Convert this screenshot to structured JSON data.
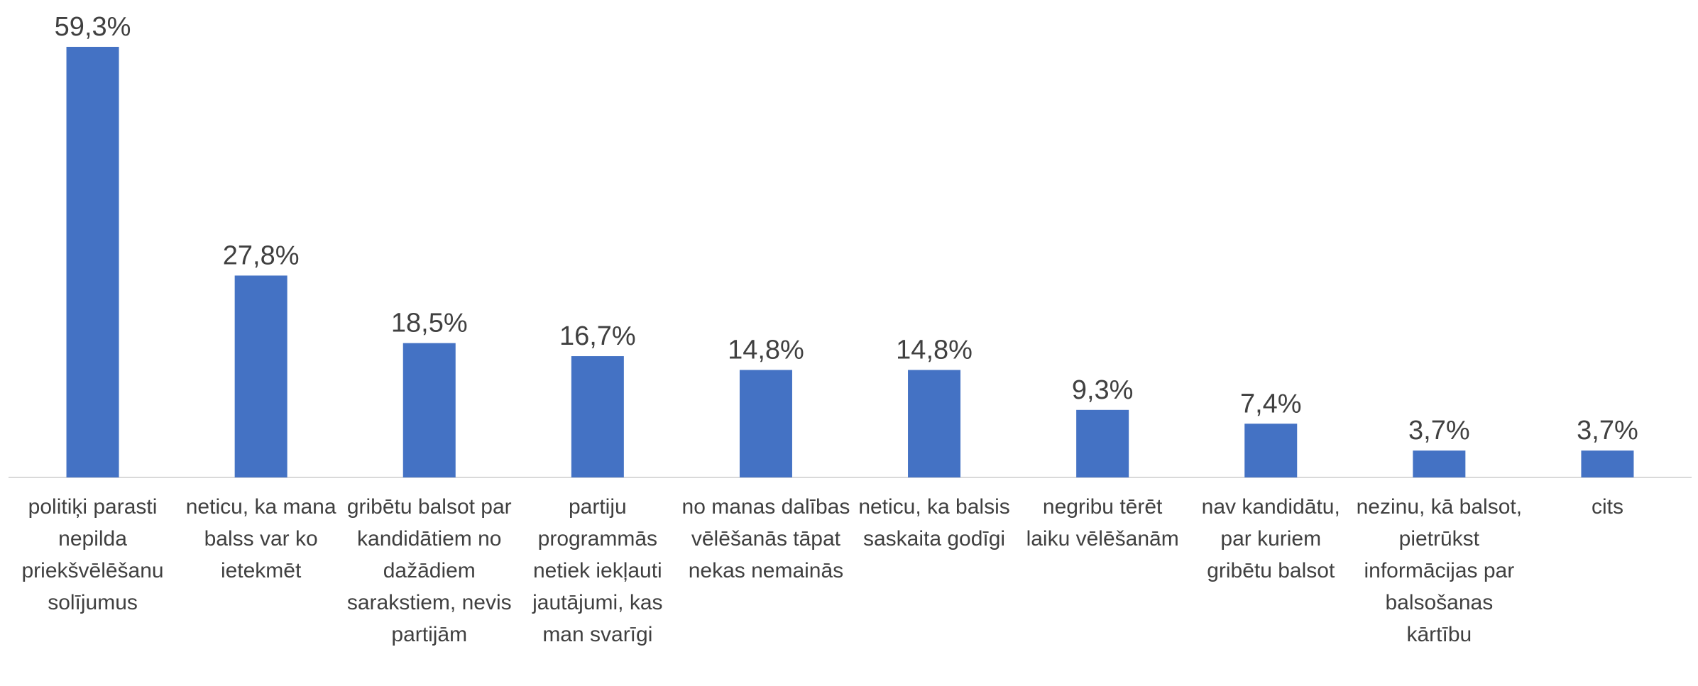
{
  "chart_data": {
    "type": "bar",
    "categories": [
      "politiķi parasti nepilda priekšvēlēšanu solījumus",
      "neticu, ka mana balss var ko ietekmēt",
      "gribētu balsot par kandidātiem no dažādiem sarakstiem, nevis partijām",
      "partiju programmās netiek iekļauti jautājumi, kas man svarīgi",
      "no manas dalības vēlēšanās tāpat nekas nemainās",
      "neticu, ka balsis saskaita godīgi",
      "negribu tērēt laiku vēlēšanām",
      "nav kandidātu, par kuriem gribētu balsot",
      "nezinu, kā balsot, pietrūkst informācijas par balsošanas kārtību",
      "cits"
    ],
    "values": [
      59.3,
      27.8,
      18.5,
      16.7,
      14.8,
      14.8,
      9.3,
      7.4,
      3.7,
      3.7
    ],
    "value_labels": [
      "59,3%",
      "27,8%",
      "18,5%",
      "16,7%",
      "14,8%",
      "14,8%",
      "9,3%",
      "7,4%",
      "3,7%",
      "3,7%"
    ],
    "color": "#4472c4"
  }
}
